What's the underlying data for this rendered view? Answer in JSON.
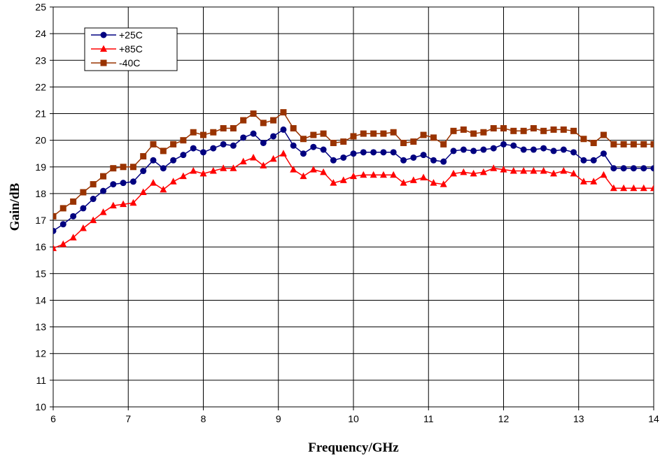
{
  "chart_data": {
    "type": "line",
    "title": "",
    "xlabel": "Frequency/GHz",
    "ylabel": "Gain/dB",
    "xlim": [
      6,
      14
    ],
    "ylim": [
      10,
      25
    ],
    "xticks": [
      "6",
      "7",
      "8",
      "9",
      "10",
      "11",
      "12",
      "13",
      "14"
    ],
    "yticks": [
      "10",
      "11",
      "12",
      "13",
      "14",
      "15",
      "16",
      "17",
      "18",
      "19",
      "20",
      "21",
      "22",
      "23",
      "24",
      "25"
    ],
    "grid": true,
    "legend_position": "top-left",
    "x": [
      6.0,
      6.133,
      6.267,
      6.4,
      6.533,
      6.667,
      6.8,
      6.933,
      7.067,
      7.2,
      7.333,
      7.467,
      7.6,
      7.733,
      7.867,
      8.0,
      8.133,
      8.267,
      8.4,
      8.533,
      8.667,
      8.8,
      8.933,
      9.067,
      9.2,
      9.333,
      9.467,
      9.6,
      9.733,
      9.867,
      10.0,
      10.133,
      10.267,
      10.4,
      10.533,
      10.667,
      10.8,
      10.933,
      11.067,
      11.2,
      11.333,
      11.467,
      11.6,
      11.733,
      11.867,
      12.0,
      12.133,
      12.267,
      12.4,
      12.533,
      12.667,
      12.8,
      12.933,
      13.067,
      13.2,
      13.333,
      13.467,
      13.6,
      13.733,
      13.867,
      14.0
    ],
    "series": [
      {
        "name": "+25C",
        "color": "#000080",
        "marker": "circle",
        "values": [
          16.6,
          16.85,
          17.15,
          17.45,
          17.8,
          18.1,
          18.35,
          18.4,
          18.45,
          18.85,
          19.25,
          18.95,
          19.25,
          19.45,
          19.7,
          19.55,
          19.7,
          19.85,
          19.8,
          20.1,
          20.25,
          19.9,
          20.15,
          20.4,
          19.8,
          19.5,
          19.75,
          19.65,
          19.25,
          19.35,
          19.5,
          19.55,
          19.55,
          19.55,
          19.55,
          19.25,
          19.35,
          19.45,
          19.25,
          19.2,
          19.6,
          19.65,
          19.6,
          19.65,
          19.7,
          19.85,
          19.8,
          19.65,
          19.65,
          19.7,
          19.6,
          19.65,
          19.55,
          19.25,
          19.25,
          19.5,
          18.95,
          18.95,
          18.95,
          18.95,
          18.95
        ]
      },
      {
        "name": "+85C",
        "color": "#ff0000",
        "marker": "triangle",
        "values": [
          15.95,
          16.1,
          16.35,
          16.7,
          17.0,
          17.3,
          17.55,
          17.6,
          17.65,
          18.05,
          18.4,
          18.15,
          18.45,
          18.65,
          18.85,
          18.75,
          18.85,
          18.95,
          18.95,
          19.2,
          19.35,
          19.05,
          19.3,
          19.5,
          18.9,
          18.65,
          18.9,
          18.8,
          18.4,
          18.5,
          18.65,
          18.7,
          18.7,
          18.7,
          18.7,
          18.4,
          18.5,
          18.6,
          18.4,
          18.35,
          18.75,
          18.8,
          18.75,
          18.8,
          18.95,
          18.9,
          18.85,
          18.85,
          18.85,
          18.85,
          18.75,
          18.85,
          18.75,
          18.45,
          18.45,
          18.7,
          18.2,
          18.2,
          18.2,
          18.2,
          18.2
        ]
      },
      {
        "name": "-40C",
        "color": "#993300",
        "marker": "square",
        "values": [
          17.15,
          17.45,
          17.7,
          18.05,
          18.35,
          18.65,
          18.95,
          19.0,
          19.0,
          19.4,
          19.85,
          19.6,
          19.85,
          20.0,
          20.3,
          20.2,
          20.3,
          20.45,
          20.45,
          20.75,
          21.0,
          20.65,
          20.75,
          21.05,
          20.45,
          20.05,
          20.2,
          20.25,
          19.9,
          19.95,
          20.15,
          20.25,
          20.25,
          20.25,
          20.3,
          19.9,
          19.95,
          20.2,
          20.1,
          19.85,
          20.35,
          20.4,
          20.25,
          20.3,
          20.45,
          20.45,
          20.35,
          20.35,
          20.45,
          20.35,
          20.4,
          20.4,
          20.35,
          20.05,
          19.9,
          20.2,
          19.85,
          19.85,
          19.85,
          19.85,
          19.85
        ]
      }
    ]
  }
}
